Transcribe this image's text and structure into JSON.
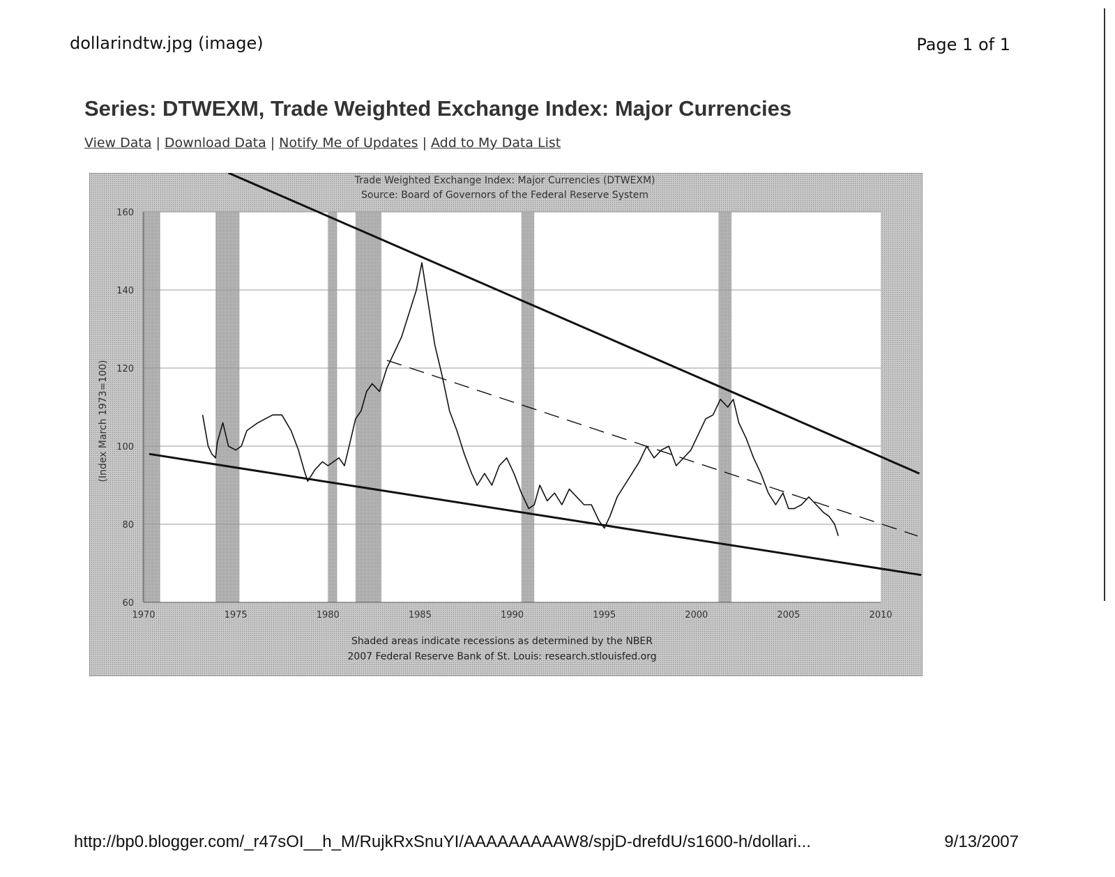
{
  "print_header": {
    "left": "dollarindtw.jpg (image)",
    "right": "Page 1 of 1"
  },
  "page_title": "Series: DTWEXM, Trade Weighted Exchange Index: Major Currencies",
  "links": [
    "View Data",
    "Download Data",
    "Notify Me of Updates",
    "Add to My Data List"
  ],
  "print_footer": {
    "url": "http://bp0.blogger.com/_r47sOI__h_M/RujkRxSnuYI/AAAAAAAAAW8/spjD-drefdU/s1600-h/dollari...",
    "date": "9/13/2007"
  },
  "colors": {
    "frame": "#bdbdbd",
    "plot_bg": "#ffffff",
    "recession": "#b3b3b3",
    "series": "#111111",
    "trendline": "#111111"
  },
  "chart_data": {
    "type": "line",
    "title": "Trade Weighted Exchange Index: Major Currencies (DTWEXM)",
    "subtitle": "Source: Board of Governors of the Federal Reserve System",
    "xlabel": "",
    "ylabel": "(Index March 1973=100)",
    "xlim": [
      1970,
      2010
    ],
    "ylim": [
      60,
      160
    ],
    "xticks": [
      1970,
      1975,
      1980,
      1985,
      1990,
      1995,
      2000,
      2005,
      2010
    ],
    "yticks": [
      60,
      80,
      100,
      120,
      140,
      160
    ],
    "grid": true,
    "footnote": "Shaded areas indicate recessions as determined by the NBER",
    "credit": "2007 Federal Reserve Bank of St. Louis: research.stlouisfed.org",
    "recessions": [
      [
        1969.9,
        1970.9
      ],
      [
        1973.9,
        1975.2
      ],
      [
        1980.0,
        1980.5
      ],
      [
        1981.5,
        1982.9
      ],
      [
        1990.5,
        1991.2
      ],
      [
        2001.2,
        2001.9
      ]
    ],
    "series": [
      {
        "x": [
          1973.2,
          1973.5,
          1973.7,
          1973.9,
          1974.0,
          1974.3,
          1974.6,
          1975.0,
          1975.3,
          1975.6,
          1975.9,
          1976.2,
          1976.6,
          1977.0,
          1977.5,
          1978.0,
          1978.4,
          1978.7,
          1978.9,
          1979.3,
          1979.7,
          1980.0,
          1980.3,
          1980.6,
          1980.9,
          1981.2,
          1981.5,
          1981.8,
          1982.1,
          1982.4,
          1982.8,
          1983.2,
          1983.6,
          1984.0,
          1984.4,
          1984.8,
          1985.1,
          1985.4,
          1985.8,
          1986.2,
          1986.6,
          1987.0,
          1987.4,
          1987.8,
          1988.1,
          1988.5,
          1988.9,
          1989.3,
          1989.7,
          1990.1,
          1990.5,
          1990.9,
          1991.2,
          1991.5,
          1991.9,
          1992.3,
          1992.7,
          1993.1,
          1993.5,
          1993.9,
          1994.3,
          1994.7,
          1995.0,
          1995.3,
          1995.7,
          1996.1,
          1996.5,
          1996.9,
          1997.3,
          1997.7,
          1998.1,
          1998.5,
          1998.9,
          1999.3,
          1999.7,
          2000.1,
          2000.5,
          2000.9,
          2001.3,
          2001.7,
          2002.0,
          2002.3,
          2002.7,
          2003.1,
          2003.5,
          2003.9,
          2004.3,
          2004.7,
          2005.0,
          2005.3,
          2005.7,
          2006.1,
          2006.5,
          2006.9,
          2007.2,
          2007.5,
          2007.7
        ],
        "values": [
          108,
          100,
          98,
          97,
          101,
          106,
          100,
          99,
          100,
          104,
          105,
          106,
          107,
          108,
          108,
          104,
          99,
          94,
          91,
          94,
          96,
          95,
          96,
          97,
          95,
          101,
          107,
          109,
          114,
          116,
          114,
          120,
          124,
          128,
          134,
          140,
          147,
          138,
          126,
          118,
          109,
          104,
          98,
          93,
          90,
          93,
          90,
          95,
          97,
          93,
          88,
          84,
          85,
          90,
          86,
          88,
          85,
          89,
          87,
          85,
          85,
          81,
          79,
          82,
          87,
          90,
          93,
          96,
          100,
          97,
          99,
          100,
          95,
          97,
          99,
          103,
          107,
          108,
          112,
          110,
          112,
          106,
          102,
          97,
          93,
          88,
          85,
          88,
          84,
          84,
          85,
          87,
          85,
          83,
          82,
          80,
          77
        ]
      }
    ],
    "annotations": [
      {
        "type": "trendline",
        "style": "solid",
        "points": [
          [
            1974.6,
            170
          ],
          [
            2012.1,
            93
          ]
        ]
      },
      {
        "type": "trendline",
        "style": "solid",
        "points": [
          [
            1970.3,
            98
          ],
          [
            2012.2,
            67
          ]
        ]
      },
      {
        "type": "trendline",
        "style": "dashed",
        "points": [
          [
            1983.2,
            122
          ],
          [
            2012.0,
            77
          ]
        ]
      }
    ]
  }
}
